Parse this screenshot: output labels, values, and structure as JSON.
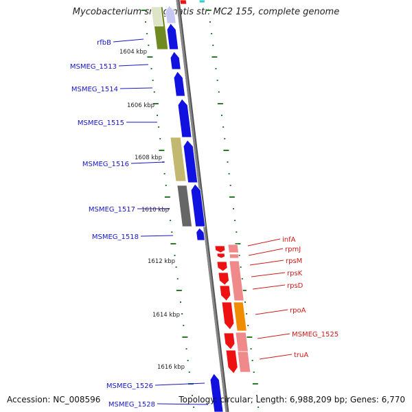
{
  "title": "Mycobacterium smegmatis str. MC2 155, complete genome",
  "accession": "Accession: NC_008596",
  "summary": "Topology: circular; Length: 6,988,209 bp; Genes: 6,770",
  "colors": {
    "backbone": "#888888",
    "tick": "#2a7a2a",
    "left_label": "#1515c8",
    "right_label": "#d01818",
    "gene_blue": "#1212e0",
    "gene_red": "#ee1111",
    "gene_pink": "#f08a8a",
    "gene_orange": "#f08c00",
    "gene_olive": "#6e8a20",
    "gene_khaki": "#c2b870",
    "gene_gray": "#666666"
  },
  "kbp_labels": [
    {
      "text": "1604 kbp"
    },
    {
      "text": "1606 kbp"
    },
    {
      "text": "1608 kbp"
    },
    {
      "text": "1610 kbp"
    },
    {
      "text": "1612 kbp"
    },
    {
      "text": "1614 kbp"
    },
    {
      "text": "1616 kbp"
    }
  ],
  "left_genes": [
    {
      "name": "rfbB"
    },
    {
      "name": "MSMEG_1513"
    },
    {
      "name": "MSMEG_1514"
    },
    {
      "name": "MSMEG_1515"
    },
    {
      "name": "MSMEG_1516"
    },
    {
      "name": "MSMEG_1517"
    },
    {
      "name": "MSMEG_1518"
    },
    {
      "name": "MSMEG_1526"
    },
    {
      "name": "MSMEG_1528"
    }
  ],
  "right_genes": [
    {
      "name": "infA"
    },
    {
      "name": "rpmJ"
    },
    {
      "name": "rpsM"
    },
    {
      "name": "rpsK"
    },
    {
      "name": "rpsD"
    },
    {
      "name": "rpoA"
    },
    {
      "name": "MSMEG_1525"
    },
    {
      "name": "truA"
    }
  ]
}
